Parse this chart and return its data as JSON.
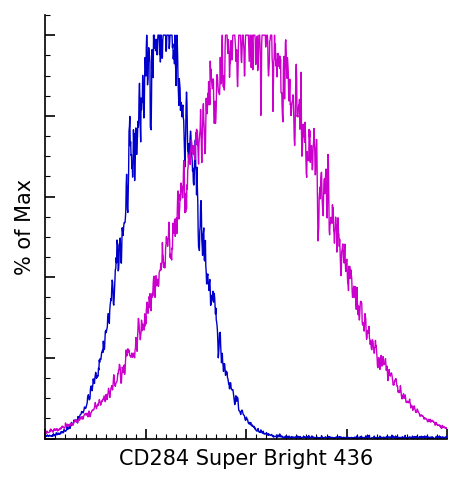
{
  "title": "",
  "xlabel": "CD284 Super Bright 436",
  "ylabel": "% of Max",
  "blue_color": "#0000CC",
  "magenta_color": "#CC00CC",
  "xlim": [
    0,
    1000
  ],
  "ylim": [
    0,
    105
  ],
  "xlabel_fontsize": 15,
  "ylabel_fontsize": 15,
  "blue_peak": 290,
  "blue_sigma": 85,
  "magenta_peak": 520,
  "magenta_sigma": 175,
  "n_points": 1000,
  "noise_scale_blue": 0.13,
  "noise_scale_magenta": 0.12,
  "seed": 42,
  "figsize": [
    4.62,
    4.84
  ],
  "dpi": 100
}
